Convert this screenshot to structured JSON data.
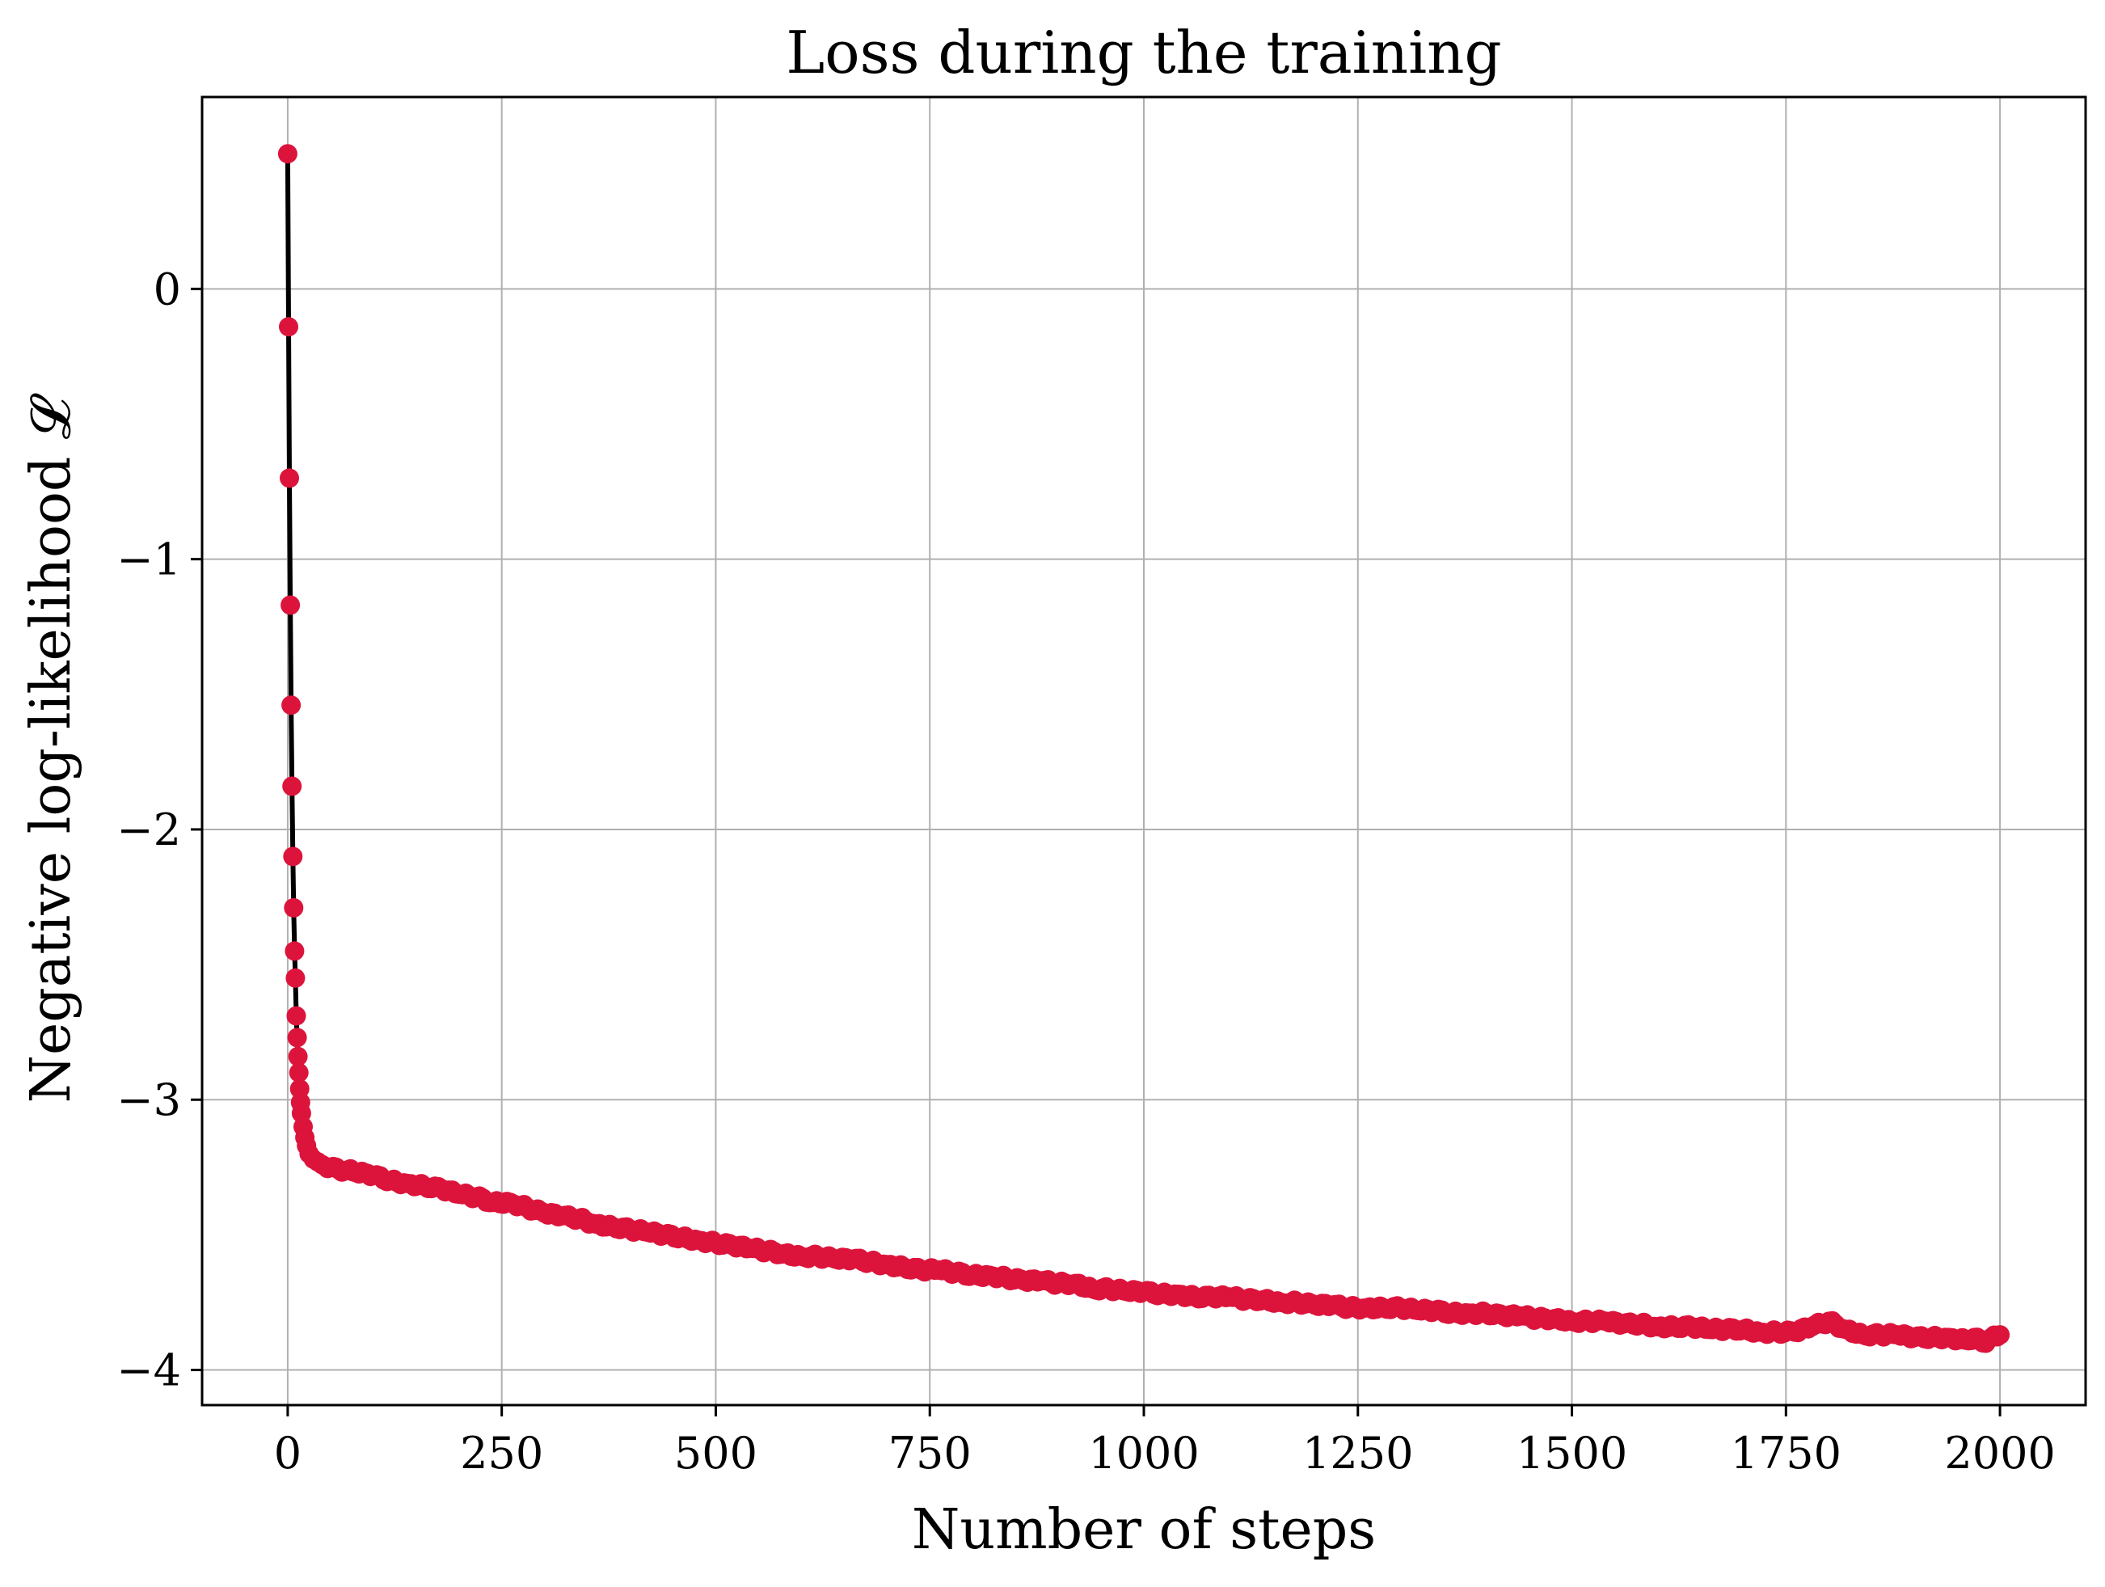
{
  "chart_data": {
    "type": "line",
    "title": "Loss during the training",
    "xlabel": "Number of steps",
    "ylabel": "Negative log-likelihood 𝓛",
    "xlim": [
      -100,
      2100
    ],
    "ylim": [
      -4.13,
      0.71
    ],
    "xticks": [
      0,
      250,
      500,
      750,
      1000,
      1250,
      1500,
      1750,
      2000
    ],
    "yticks": [
      0,
      -1,
      -2,
      -3,
      -4
    ],
    "xtick_labels": [
      "0",
      "250",
      "500",
      "750",
      "1000",
      "1250",
      "1500",
      "1750",
      "2000"
    ],
    "ytick_labels": [
      "0",
      "−1",
      "−2",
      "−3",
      "−4"
    ],
    "grid": true,
    "series": [
      {
        "line_color": "#000000",
        "marker_color": "#dc143c",
        "x": [
          0,
          1,
          2,
          3,
          4,
          5,
          6,
          7,
          8,
          9,
          10,
          11,
          12,
          13,
          14,
          15,
          16,
          18,
          20,
          22,
          25,
          30,
          35,
          40,
          50,
          60,
          70,
          80,
          90,
          100,
          120,
          140,
          160,
          180,
          200,
          220,
          240,
          260,
          280,
          300,
          320,
          340,
          360,
          380,
          400,
          420,
          440,
          460,
          480,
          500,
          520,
          540,
          560,
          580,
          600,
          620,
          640,
          660,
          680,
          700,
          720,
          740,
          760,
          780,
          800,
          820,
          840,
          860,
          880,
          900,
          920,
          940,
          960,
          980,
          1000,
          1020,
          1040,
          1060,
          1080,
          1100,
          1120,
          1140,
          1160,
          1180,
          1200,
          1220,
          1240,
          1260,
          1280,
          1300,
          1320,
          1340,
          1360,
          1380,
          1400,
          1420,
          1440,
          1460,
          1480,
          1500,
          1520,
          1540,
          1560,
          1580,
          1600,
          1620,
          1640,
          1660,
          1680,
          1700,
          1720,
          1740,
          1760,
          1780,
          1800,
          1820,
          1840,
          1860,
          1880,
          1900,
          1920,
          1940,
          1960,
          1970,
          1980,
          1990,
          2000
        ],
        "y": [
          0.5,
          -0.14,
          -0.7,
          -1.17,
          -1.54,
          -1.84,
          -2.1,
          -2.29,
          -2.45,
          -2.55,
          -2.69,
          -2.77,
          -2.84,
          -2.9,
          -2.96,
          -3.01,
          -3.05,
          -3.1,
          -3.14,
          -3.17,
          -3.2,
          -3.22,
          -3.23,
          -3.24,
          -3.25,
          -3.26,
          -3.26,
          -3.27,
          -3.27,
          -3.28,
          -3.3,
          -3.31,
          -3.32,
          -3.33,
          -3.35,
          -3.36,
          -3.38,
          -3.38,
          -3.4,
          -3.42,
          -3.43,
          -3.44,
          -3.46,
          -3.47,
          -3.48,
          -3.49,
          -3.5,
          -3.51,
          -3.52,
          -3.53,
          -3.54,
          -3.55,
          -3.56,
          -3.57,
          -3.58,
          -3.58,
          -3.59,
          -3.59,
          -3.6,
          -3.61,
          -3.62,
          -3.63,
          -3.63,
          -3.64,
          -3.65,
          -3.65,
          -3.66,
          -3.67,
          -3.67,
          -3.68,
          -3.68,
          -3.7,
          -3.7,
          -3.71,
          -3.71,
          -3.72,
          -3.72,
          -3.73,
          -3.73,
          -3.73,
          -3.74,
          -3.74,
          -3.75,
          -3.75,
          -3.76,
          -3.76,
          -3.77,
          -3.77,
          -3.77,
          -3.77,
          -3.78,
          -3.78,
          -3.79,
          -3.79,
          -3.79,
          -3.8,
          -3.8,
          -3.81,
          -3.81,
          -3.82,
          -3.82,
          -3.82,
          -3.83,
          -3.83,
          -3.84,
          -3.84,
          -3.84,
          -3.85,
          -3.85,
          -3.85,
          -3.86,
          -3.86,
          -3.86,
          -3.84,
          -3.82,
          -3.85,
          -3.87,
          -3.87,
          -3.87,
          -3.88,
          -3.88,
          -3.88,
          -3.89,
          -3.88,
          -3.9,
          -3.88,
          -3.87
        ]
      }
    ]
  }
}
